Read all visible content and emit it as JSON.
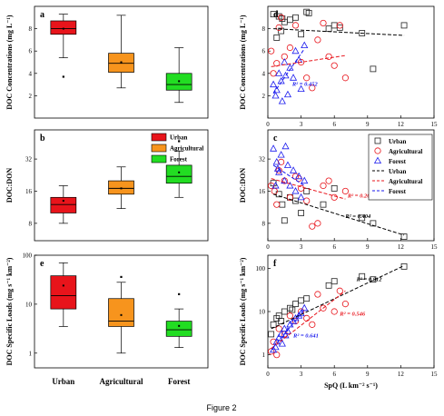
{
  "figure_caption": "Figure 2",
  "colors": {
    "urban": "#e8141b",
    "agricultural": "#f7941d",
    "forest": "#22dd22",
    "urban_line": "#000000",
    "agricultural_line": "#e8141b",
    "forest_line": "#1a1aee"
  },
  "chart_data": [
    {
      "panel": "a",
      "type": "box",
      "yscale": "linear",
      "ylabel": "DOC Concentrations (mg L⁻¹)",
      "ylim": [
        0,
        10
      ],
      "yticks": [
        2,
        4,
        6,
        8
      ],
      "categories": [
        "Urban",
        "Agricultural",
        "Forest"
      ],
      "boxes": [
        {
          "name": "Urban",
          "whisker_low": 5.4,
          "q1": 7.5,
          "median": 8.0,
          "q3": 8.7,
          "whisker_high": 9.3,
          "mean": 8.0,
          "outliers": [
            3.7
          ]
        },
        {
          "name": "Agricultural",
          "whisker_low": 2.7,
          "q1": 4.1,
          "median": 4.9,
          "q3": 5.8,
          "whisker_high": 9.2,
          "mean": 5.0,
          "outliers": []
        },
        {
          "name": "Forest",
          "whisker_low": 1.4,
          "q1": 2.5,
          "median": 3.0,
          "q3": 4.0,
          "whisker_high": 6.3,
          "mean": 3.3,
          "outliers": []
        }
      ]
    },
    {
      "panel": "b",
      "type": "box",
      "yscale": "log2",
      "ylabel": "DOC:DON",
      "ylim": [
        5.5,
        60
      ],
      "yticks": [
        8,
        16,
        32,
        64
      ],
      "categories": [
        "Urban",
        "Agricultural",
        "Forest"
      ],
      "legend": [
        "Urban",
        "Agricultural",
        "Forest"
      ],
      "boxes": [
        {
          "name": "Urban",
          "whisker_low": 8,
          "q1": 10,
          "median": 12,
          "q3": 14,
          "whisker_high": 18,
          "mean": 13,
          "outliers": []
        },
        {
          "name": "Agricultural",
          "whisker_low": 11,
          "q1": 15,
          "median": 17,
          "q3": 20,
          "whisker_high": 27,
          "mean": 17,
          "outliers": []
        },
        {
          "name": "Forest",
          "whisker_low": 14,
          "q1": 19,
          "median": 22,
          "q3": 28,
          "whisker_high": 38,
          "mean": 24,
          "outliers": [
            47
          ]
        }
      ]
    },
    {
      "panel": "e",
      "type": "box",
      "yscale": "log10",
      "ylabel": "DOC Specific Loads (mg s⁻¹ km⁻²)",
      "ylim": [
        0.5,
        100
      ],
      "yticks": [
        1,
        10,
        100
      ],
      "categories": [
        "Urban",
        "Agricultural",
        "Forest"
      ],
      "boxes": [
        {
          "name": "Urban",
          "whisker_low": 3.5,
          "q1": 8,
          "median": 15,
          "q3": 38,
          "whisker_high": 70,
          "mean": 24,
          "outliers": []
        },
        {
          "name": "Agricultural",
          "whisker_low": 1,
          "q1": 3.5,
          "median": 4.5,
          "q3": 13,
          "whisker_high": 28,
          "mean": 6,
          "outliers": [
            36
          ]
        },
        {
          "name": "Forest",
          "whisker_low": 1.3,
          "q1": 2.2,
          "median": 3,
          "q3": 4.5,
          "whisker_high": 8,
          "mean": 3.6,
          "outliers": [
            16
          ]
        }
      ]
    },
    {
      "panel": "d",
      "type": "scatter",
      "yscale": "linear",
      "ylabel": "DOC Concentrations (mg L⁻¹)",
      "xlim": [
        0,
        15
      ],
      "xticks": [
        0,
        3,
        6,
        9,
        12,
        15
      ],
      "ylim": [
        0,
        10
      ],
      "yticks": [
        2,
        4,
        6,
        8
      ],
      "annotations": [
        {
          "text": "R² = 0.452",
          "series": "Forest",
          "x": 2.2,
          "y": 2.9
        }
      ],
      "series": [
        {
          "name": "Urban",
          "marker": "square",
          "points": [
            [
              0.5,
              9.3
            ],
            [
              1.0,
              9.1
            ],
            [
              1.3,
              8.9
            ],
            [
              1.5,
              8.6
            ],
            [
              2.0,
              8.8
            ],
            [
              2.5,
              9.0
            ],
            [
              3.0,
              7.5
            ],
            [
              3.5,
              9.5
            ],
            [
              3.7,
              9.4
            ],
            [
              5.5,
              8.0
            ],
            [
              6.0,
              8.3
            ],
            [
              6.5,
              8.1
            ],
            [
              8.5,
              7.6
            ],
            [
              9.5,
              4.4
            ],
            [
              12.3,
              8.3
            ],
            [
              0.8,
              7.2
            ],
            [
              1.2,
              7.8
            ]
          ],
          "trend": [
            [
              0.5,
              8.0
            ],
            [
              12.3,
              7.4
            ]
          ]
        },
        {
          "name": "Agricultural",
          "marker": "circle",
          "points": [
            [
              0.3,
              6.0
            ],
            [
              0.5,
              4.0
            ],
            [
              1.0,
              8.1
            ],
            [
              1.5,
              5.5
            ],
            [
              2.0,
              6.3
            ],
            [
              2.5,
              8.3
            ],
            [
              3.0,
              5.0
            ],
            [
              3.5,
              3.6
            ],
            [
              4.0,
              2.7
            ],
            [
              4.5,
              7.0
            ],
            [
              5.0,
              8.5
            ],
            [
              5.5,
              5.5
            ],
            [
              6.0,
              4.7
            ],
            [
              6.5,
              8.3
            ],
            [
              7.0,
              3.6
            ],
            [
              1.2,
              9.0
            ],
            [
              0.8,
              4.9
            ]
          ],
          "trend": [
            [
              0.3,
              4.6
            ],
            [
              7.0,
              5.6
            ]
          ]
        },
        {
          "name": "Forest",
          "marker": "triangle",
          "points": [
            [
              0.5,
              3.0
            ],
            [
              0.8,
              2.5
            ],
            [
              1.0,
              4.0
            ],
            [
              1.2,
              3.3
            ],
            [
              1.5,
              5.0
            ],
            [
              1.8,
              2.1
            ],
            [
              2.0,
              4.5
            ],
            [
              2.3,
              3.6
            ],
            [
              2.5,
              6.0
            ],
            [
              2.8,
              5.2
            ],
            [
              3.0,
              2.6
            ],
            [
              3.3,
              6.5
            ],
            [
              1.3,
              1.5
            ],
            [
              0.7,
              2.0
            ],
            [
              1.6,
              3.8
            ]
          ],
          "trend": [
            [
              0.5,
              2.2
            ],
            [
              3.3,
              6.2
            ]
          ]
        }
      ]
    },
    {
      "panel": "c",
      "type": "scatter",
      "yscale": "log2",
      "ylabel": "DOC:DON",
      "xlim": [
        0,
        15
      ],
      "xticks": [
        0,
        3,
        6,
        9,
        12,
        15
      ],
      "ylim": [
        5.5,
        60
      ],
      "yticks": [
        8,
        16,
        32,
        64
      ],
      "legend": [
        "Urban",
        "Agricultural",
        "Forest",
        "Urban",
        "Agricultural",
        "Forest"
      ],
      "annotations": [
        {
          "text": "R² = 0.208",
          "series": "Agricultural",
          "x": 7.2,
          "y": 14
        },
        {
          "text": "R² = 0.404",
          "series": "Urban",
          "x": 7.0,
          "y": 9
        }
      ],
      "series": [
        {
          "name": "Urban",
          "marker": "square",
          "points": [
            [
              0.5,
              19
            ],
            [
              1.0,
              15
            ],
            [
              1.5,
              8.5
            ],
            [
              2.0,
              14
            ],
            [
              2.5,
              13
            ],
            [
              3.0,
              10
            ],
            [
              3.5,
              16
            ],
            [
              5.0,
              12
            ],
            [
              6.0,
              17
            ],
            [
              8.5,
              9
            ],
            [
              9.5,
              8
            ],
            [
              12.3,
              6
            ],
            [
              1.3,
              12
            ]
          ],
          "trend": [
            [
              0.5,
              15
            ],
            [
              12.3,
              6.2
            ]
          ]
        },
        {
          "name": "Agricultural",
          "marker": "circle",
          "points": [
            [
              0.3,
              18
            ],
            [
              0.6,
              16
            ],
            [
              1.0,
              25
            ],
            [
              1.5,
              20
            ],
            [
              2.0,
              14
            ],
            [
              2.5,
              22
            ],
            [
              3.0,
              17
            ],
            [
              3.5,
              13
            ],
            [
              4.5,
              8
            ],
            [
              5.0,
              18
            ],
            [
              5.5,
              20
            ],
            [
              6.0,
              14
            ],
            [
              7.0,
              16
            ],
            [
              1.2,
              30
            ],
            [
              0.8,
              12
            ],
            [
              4.0,
              7.5
            ],
            [
              2.8,
              21
            ]
          ],
          "trend": [
            [
              0.3,
              21
            ],
            [
              7.0,
              13.5
            ]
          ]
        },
        {
          "name": "Forest",
          "marker": "triangle",
          "points": [
            [
              0.5,
              40
            ],
            [
              0.8,
              30
            ],
            [
              1.0,
              24
            ],
            [
              1.2,
              35
            ],
            [
              1.5,
              20
            ],
            [
              1.8,
              28
            ],
            [
              2.0,
              18
            ],
            [
              2.3,
              25
            ],
            [
              2.5,
              16
            ],
            [
              2.8,
              22
            ],
            [
              3.0,
              14
            ],
            [
              3.3,
              20
            ],
            [
              0.7,
              18
            ],
            [
              1.6,
              42
            ],
            [
              0.9,
              26
            ]
          ],
          "trend": [
            [
              0.5,
              28
            ],
            [
              3.3,
              18
            ]
          ]
        }
      ]
    },
    {
      "panel": "f",
      "type": "scatter",
      "yscale": "log10",
      "ylabel": "DOC Specific Loads (mg s⁻¹ km⁻²)",
      "xlabel": "SpQ (L km⁻² s⁻¹)",
      "xlim": [
        0,
        15
      ],
      "xticks": [
        0,
        3,
        6,
        9,
        12,
        15
      ],
      "ylim": [
        0.5,
        200
      ],
      "yticks": [
        1,
        10,
        100
      ],
      "annotations": [
        {
          "text": "R² = 0.812",
          "series": "Urban",
          "x": 8.0,
          "y": 50
        },
        {
          "text": "R² = 0.546",
          "series": "Agricultural",
          "x": 6.5,
          "y": 8
        },
        {
          "text": "R² = 0.641",
          "series": "Forest",
          "x": 2.3,
          "y": 2.5
        }
      ],
      "series": [
        {
          "name": "Urban",
          "marker": "square",
          "points": [
            [
              0.3,
              3
            ],
            [
              0.5,
              5
            ],
            [
              0.8,
              7
            ],
            [
              1.0,
              8
            ],
            [
              1.5,
              10
            ],
            [
              2.0,
              12
            ],
            [
              2.5,
              15
            ],
            [
              3.0,
              18
            ],
            [
              3.5,
              20
            ],
            [
              5.5,
              40
            ],
            [
              6.0,
              50
            ],
            [
              8.5,
              65
            ],
            [
              9.5,
              55
            ],
            [
              12.3,
              110
            ],
            [
              1.2,
              6
            ],
            [
              2.2,
              11
            ]
          ],
          "trend": [
            [
              0.3,
              4
            ],
            [
              12.3,
              115
            ]
          ]
        },
        {
          "name": "Agricultural",
          "marker": "circle",
          "points": [
            [
              0.3,
              1.2
            ],
            [
              0.5,
              2
            ],
            [
              1.0,
              4
            ],
            [
              1.5,
              3
            ],
            [
              2.0,
              8
            ],
            [
              2.5,
              6
            ],
            [
              3.0,
              10
            ],
            [
              3.5,
              7
            ],
            [
              4.0,
              5
            ],
            [
              5.0,
              12
            ],
            [
              6.0,
              10
            ],
            [
              6.5,
              30
            ],
            [
              7.0,
              15
            ],
            [
              0.8,
              1.0
            ],
            [
              4.5,
              25
            ]
          ],
          "trend": [
            [
              0.3,
              1.4
            ],
            [
              7.0,
              30
            ]
          ]
        },
        {
          "name": "Forest",
          "marker": "triangle",
          "points": [
            [
              0.5,
              1.3
            ],
            [
              0.8,
              2
            ],
            [
              1.0,
              2.5
            ],
            [
              1.2,
              3
            ],
            [
              1.5,
              4
            ],
            [
              1.8,
              3.5
            ],
            [
              2.0,
              5
            ],
            [
              2.3,
              6
            ],
            [
              2.5,
              7
            ],
            [
              2.8,
              8
            ],
            [
              3.0,
              9
            ],
            [
              3.3,
              12
            ],
            [
              1.3,
              1.8
            ],
            [
              0.7,
              1.5
            ],
            [
              1.6,
              2.8
            ]
          ],
          "trend": [
            [
              0.5,
              1.5
            ],
            [
              3.3,
              11
            ]
          ]
        }
      ]
    }
  ]
}
